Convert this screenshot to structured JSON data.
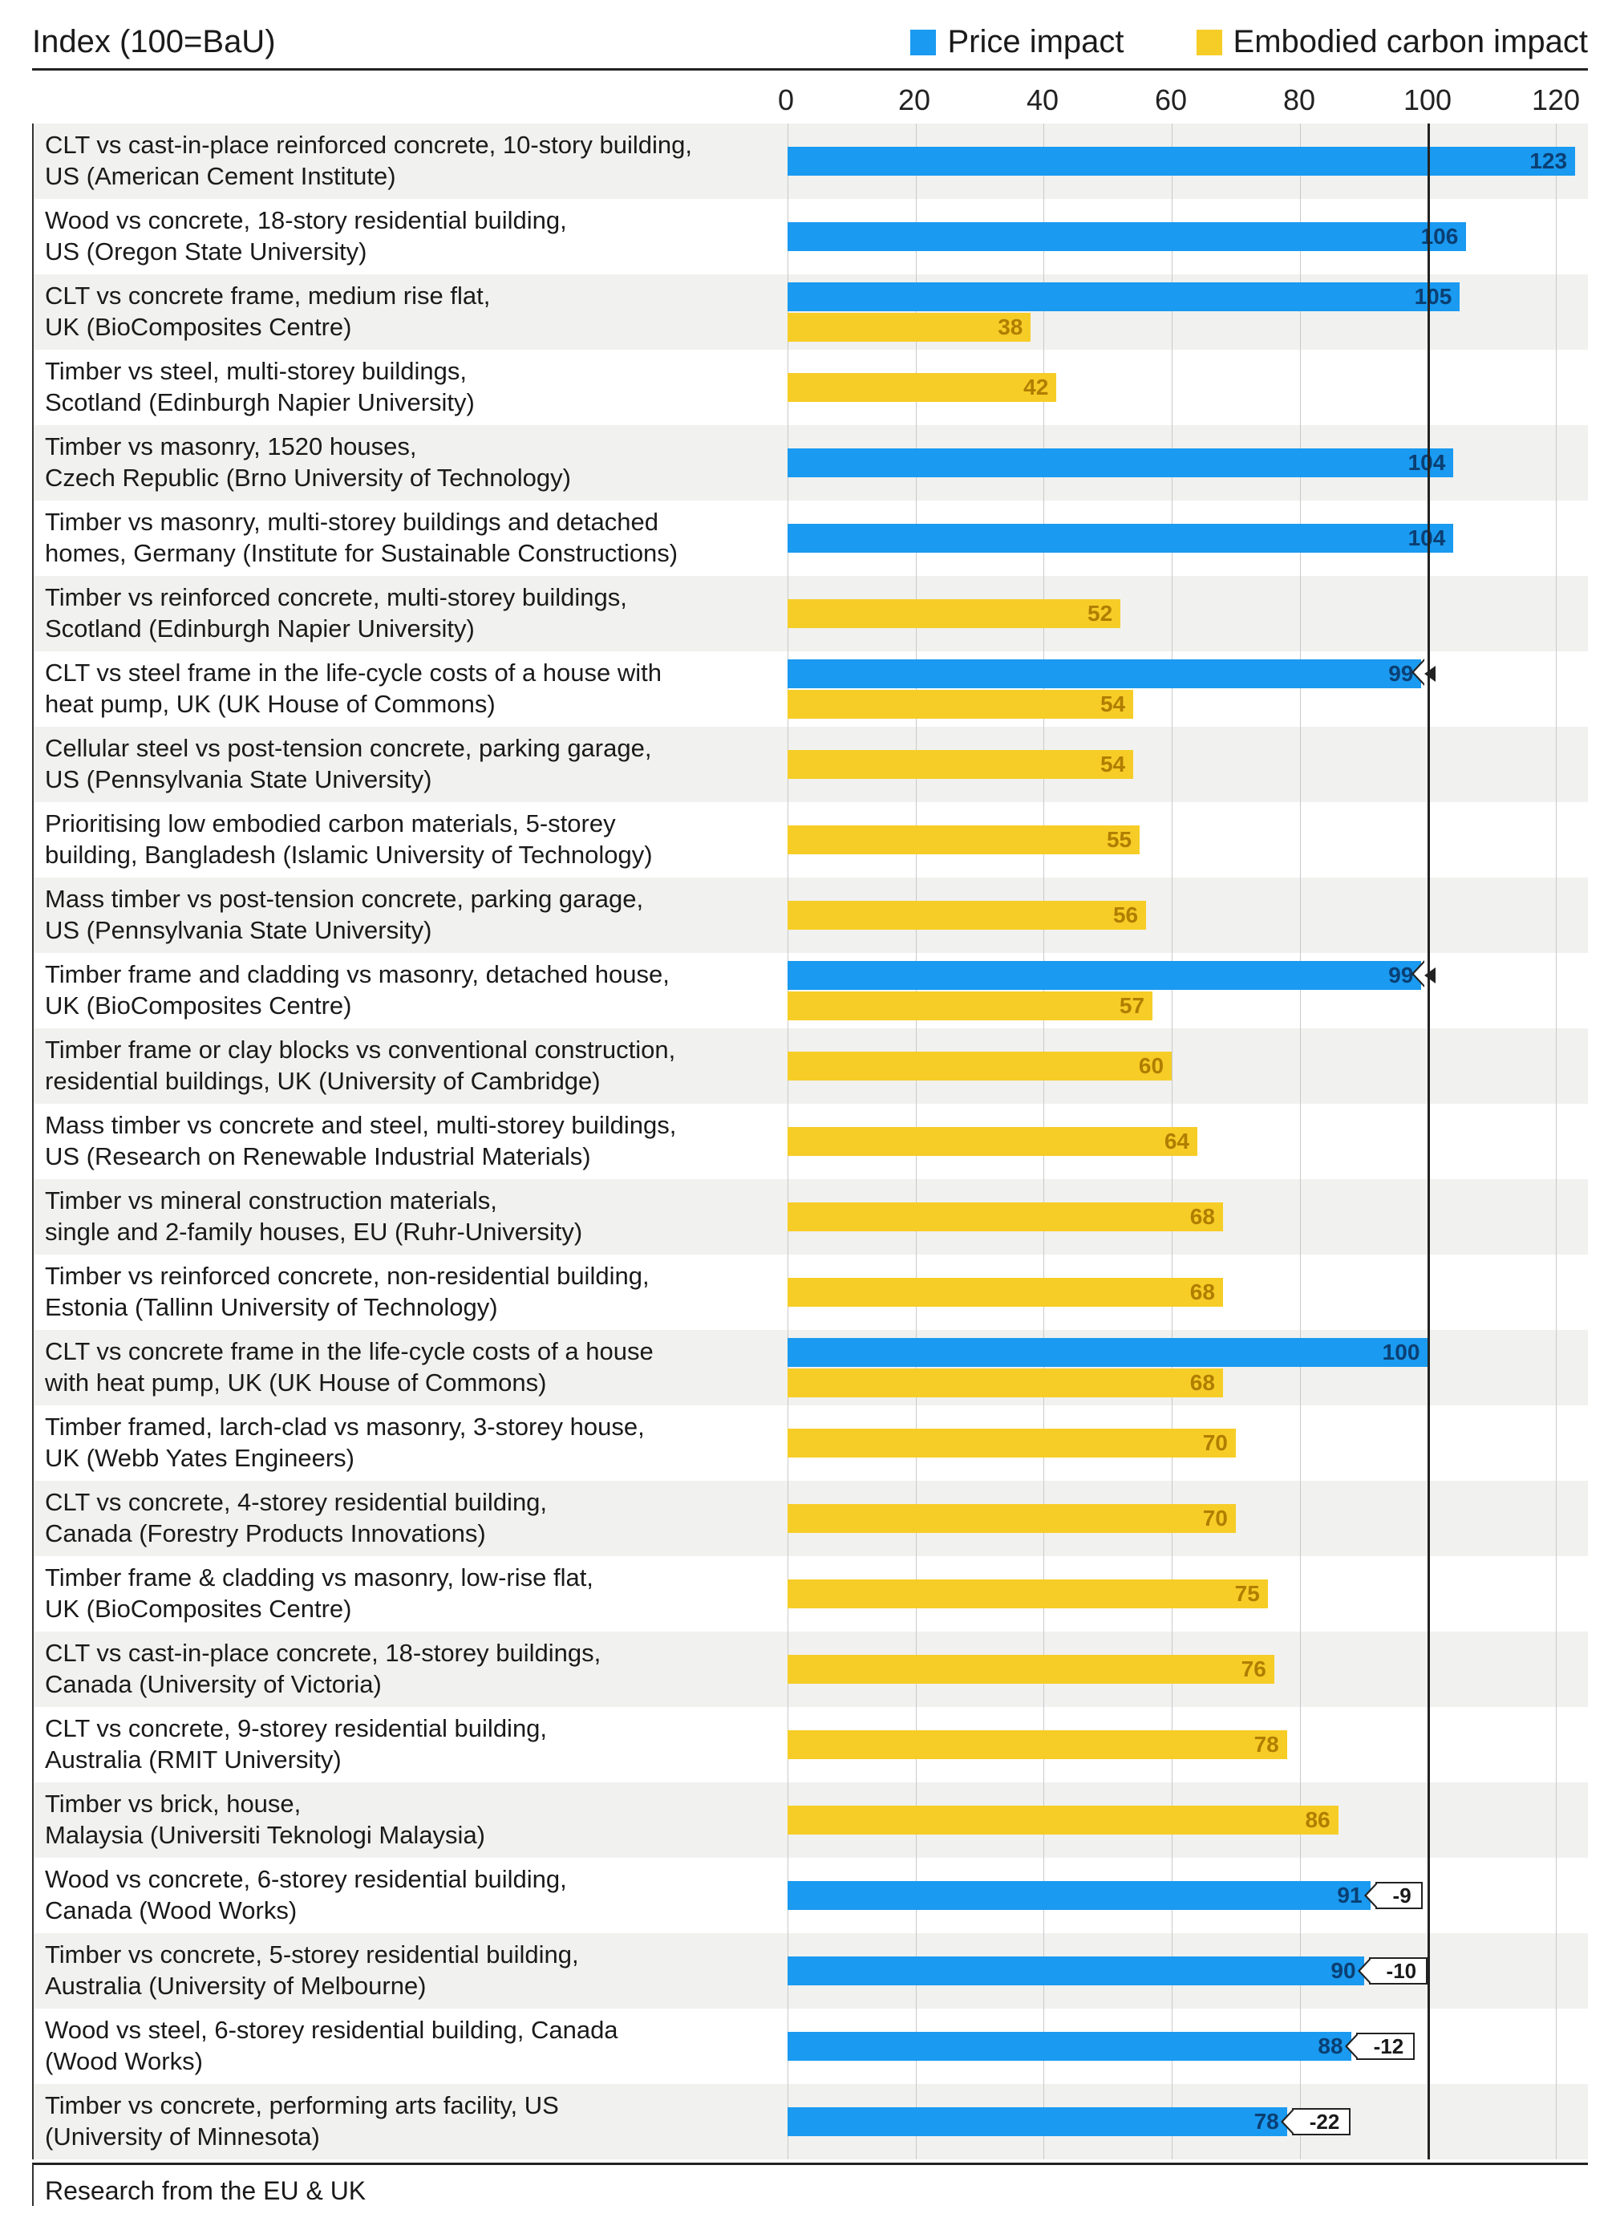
{
  "title": "Index (100=BaU)",
  "legend": {
    "price": {
      "label": "Price impact",
      "color": "#1a9af0"
    },
    "carbon": {
      "label": "Embodied carbon impact",
      "color": "#f6cd27"
    }
  },
  "axis": {
    "min": 0,
    "max": 125,
    "ticks": [
      0,
      20,
      40,
      60,
      80,
      100,
      120
    ],
    "baseline": 100
  },
  "colors": {
    "row_alt_bg": "#f1f1ef",
    "row_bg": "#ffffff",
    "grid": "#c9c9c9",
    "text": "#1a1a1a",
    "price_text": "#0b3f73",
    "carbon_text": "#b07e00",
    "label_fontsize": 31,
    "value_fontsize": 28
  },
  "footer": "Research from the EU & UK",
  "rows": [
    {
      "line1": "CLT vs cast-in-place reinforced concrete, 10-story building,",
      "line2": "US (American Cement Institute)",
      "price": 123,
      "carbon": null
    },
    {
      "line1": "Wood vs concrete, 18-story residential building,",
      "line2": "US (Oregon State University)",
      "price": 106,
      "carbon": null
    },
    {
      "line1": "CLT vs concrete frame, medium rise flat,",
      "line2": "UK (BioComposites Centre)",
      "price": 105,
      "carbon": 38
    },
    {
      "line1": "Timber vs steel, multi-storey buildings,",
      "line2": "Scotland (Edinburgh Napier University)",
      "price": null,
      "carbon": 42
    },
    {
      "line1": "Timber vs masonry, 1520 houses,",
      "line2": "Czech Republic (Brno University of Technology)",
      "price": 104,
      "carbon": null
    },
    {
      "line1": "Timber vs masonry, multi-storey buildings and detached",
      "line2": "homes, Germany (Institute for Sustainable Constructions)",
      "price": 104,
      "carbon": null
    },
    {
      "line1": "Timber vs reinforced concrete, multi-storey buildings,",
      "line2": "Scotland (Edinburgh Napier University)",
      "price": null,
      "carbon": 52
    },
    {
      "line1": "CLT vs steel frame in the life-cycle costs of a house with",
      "line2": "heat pump, UK (UK House of Commons)",
      "price": 99,
      "carbon": 54,
      "price_arrow": true
    },
    {
      "line1": "Cellular steel vs post-tension concrete, parking garage,",
      "line2": "US (Pennsylvania State University)",
      "price": null,
      "carbon": 54
    },
    {
      "line1": "Prioritising low embodied carbon materials, 5-storey",
      "line2": "building, Bangladesh (Islamic University of Technology)",
      "price": null,
      "carbon": 55
    },
    {
      "line1": "Mass timber vs post-tension concrete, parking garage,",
      "line2": "US (Pennsylvania State University)",
      "price": null,
      "carbon": 56
    },
    {
      "line1": "Timber frame and cladding vs masonry, detached house,",
      "line2": "UK (BioComposites Centre)",
      "price": 99,
      "carbon": 57,
      "price_arrow": true
    },
    {
      "line1": "Timber frame or clay blocks vs conventional construction,",
      "line2": "residential buildings, UK (University of Cambridge)",
      "price": null,
      "carbon": 60
    },
    {
      "line1": "Mass timber vs concrete and steel, multi-storey buildings,",
      "line2": "US (Research on Renewable Industrial Materials)",
      "price": null,
      "carbon": 64
    },
    {
      "line1": "Timber vs mineral construction materials,",
      "line2": "single and 2-family houses, EU (Ruhr-University)",
      "price": null,
      "carbon": 68
    },
    {
      "line1": "Timber vs reinforced concrete, non-residential building,",
      "line2": "Estonia (Tallinn University of Technology)",
      "price": null,
      "carbon": 68
    },
    {
      "line1": "CLT vs concrete frame in the life-cycle costs of a house",
      "line2": "with heat pump, UK (UK House of Commons)",
      "price": 100,
      "carbon": 68
    },
    {
      "line1": "Timber framed, larch-clad vs masonry, 3-storey house,",
      "line2": "UK (Webb Yates Engineers)",
      "price": null,
      "carbon": 70
    },
    {
      "line1": "CLT vs concrete, 4-storey residential building,",
      "line2": "Canada (Forestry Products Innovations)",
      "price": null,
      "carbon": 70
    },
    {
      "line1": "Timber frame & cladding vs masonry, low-rise flat,",
      "line2": "UK (BioComposites Centre)",
      "price": null,
      "carbon": 75
    },
    {
      "line1": "CLT vs cast-in-place concrete, 18-storey buildings,",
      "line2": "Canada (University of Victoria)",
      "price": null,
      "carbon": 76
    },
    {
      "line1": "CLT vs concrete, 9-storey residential building,",
      "line2": "Australia (RMIT University)",
      "price": null,
      "carbon": 78
    },
    {
      "line1": "Timber vs brick, house,",
      "line2": "Malaysia (Universiti Teknologi Malaysia)",
      "price": null,
      "carbon": 86
    },
    {
      "line1": "Wood vs concrete, 6-storey residential building,",
      "line2": "Canada (Wood Works)",
      "price": 91,
      "carbon": null,
      "delta": -9
    },
    {
      "line1": "Timber vs concrete, 5-storey residential building,",
      "line2": "Australia (University of Melbourne)",
      "price": 90,
      "carbon": null,
      "delta": -10
    },
    {
      "line1": "Wood vs steel, 6-storey residential building, Canada",
      "line2": "(Wood Works)",
      "price": 88,
      "carbon": null,
      "delta": -12
    },
    {
      "line1": "Timber vs concrete, performing arts facility, US",
      "line2": "(University of Minnesota)",
      "price": 78,
      "carbon": null,
      "delta": -22
    }
  ]
}
